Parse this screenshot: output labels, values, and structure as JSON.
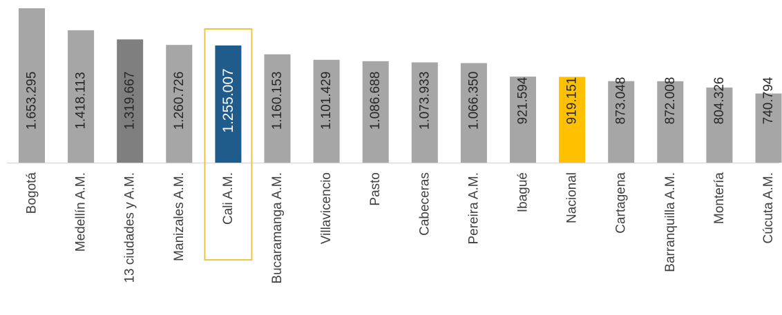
{
  "chart_data": {
    "type": "bar",
    "categories": [
      "Bogotá",
      "Medellín A.M.",
      "13 ciudades y A.M.",
      "Manizales A.M.",
      "Cali A.M.",
      "Bucaramanga A.M.",
      "Villavicencio",
      "Pasto",
      "Cabeceras",
      "Pereira A.M.",
      "Ibagué",
      "Nacional",
      "Cartagena",
      "Barranquilla A.M.",
      "Montería",
      "Cúcuta A.M."
    ],
    "values": [
      1653295,
      1418113,
      1319667,
      1260726,
      1255007,
      1160153,
      1101429,
      1086688,
      1073933,
      1066350,
      921594,
      919151,
      873048,
      872008,
      804326,
      740794
    ],
    "value_labels": [
      "1.653.295",
      "1.418.113",
      "1.319.667",
      "1.260.726",
      "1.255.007",
      "1.160.153",
      "1.101.429",
      "1.086.688",
      "1.073.933",
      "1.066.350",
      "921.594",
      "919.151",
      "873.048",
      "872.008",
      "804.326",
      "740.794"
    ],
    "title": "",
    "xlabel": "",
    "ylabel": "",
    "ylim": [
      0,
      1653295
    ],
    "grid": false,
    "legend": "none",
    "highlighted_category": "Cali A.M.",
    "colors": {
      "default": "#A6A6A6",
      "13 ciudades y A.M.": "#7F7F7F",
      "Cali A.M.": "#1F5C8B",
      "Nacional": "#FFC000",
      "highlight_box": "#F5C242",
      "axis": "#D9D9D9",
      "label_dark": "#262626",
      "label_light": "#FFFFFF"
    }
  }
}
